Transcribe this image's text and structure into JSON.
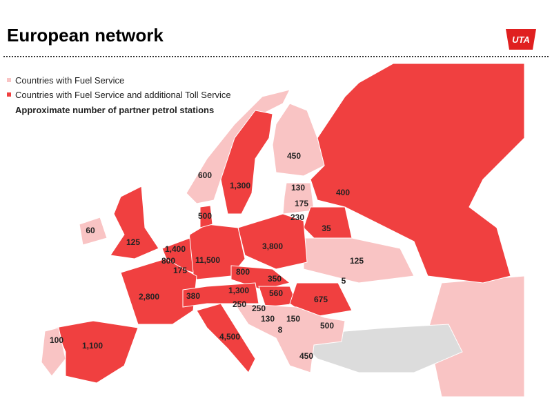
{
  "header": {
    "title": "European network",
    "logo": "UTA"
  },
  "legend": {
    "fuel": "Countries with Fuel Service",
    "toll": "Countries with Fuel Service and additional Toll Service",
    "note": "Approximate number of partner petrol stations"
  },
  "labels": [
    "450",
    "600",
    "1,300",
    "130",
    "400",
    "175",
    "500",
    "230",
    "60",
    "35",
    "125",
    "1,400",
    "3,800",
    "800",
    "11,500",
    "125",
    "175",
    "800",
    "350",
    "5",
    "2,800",
    "380",
    "1,300",
    "560",
    "675",
    "250",
    "250",
    "130",
    "150",
    "500",
    "8",
    "4,500",
    "100",
    "1,100",
    "450"
  ]
}
